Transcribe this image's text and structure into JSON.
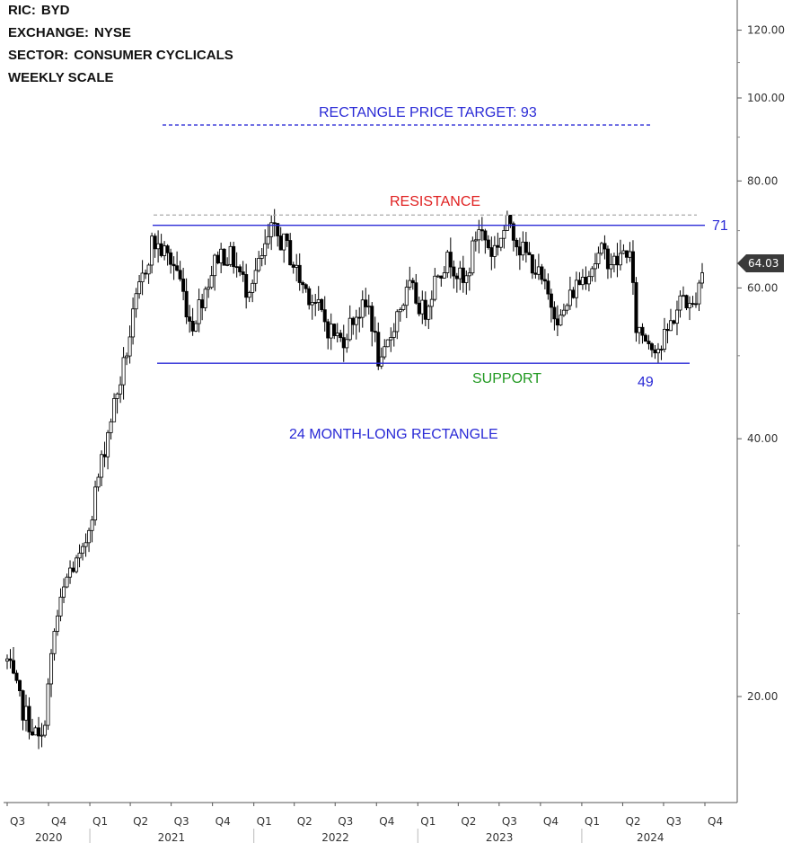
{
  "header": {
    "ric_label": "RIC:",
    "ric": "BYD",
    "exchange_label": "EXCHANGE:",
    "exchange": "NYSE",
    "sector_label": "SECTOR:",
    "sector": "CONSUMER CYCLICALS",
    "scale": "WEEKLY SCALE"
  },
  "annotations": {
    "price_target": "RECTANGLE PRICE TARGET: 93",
    "resistance": "RESISTANCE",
    "resistance_value": "71",
    "support": "SUPPORT",
    "support_value": "49",
    "pattern": "24 MONTH-LONG RECTANGLE",
    "last_price": "64.03"
  },
  "colors": {
    "candle": "#000000",
    "resistance_line": "#2a2ad6",
    "support_line": "#2a2ad6",
    "target_line": "#2a2ad6",
    "grey_dashed": "#aaaaaa",
    "resistance_text": "#e02020",
    "support_text": "#229922"
  },
  "chart_data": {
    "type": "candlestick",
    "scale": "log",
    "ylim": [
      16,
      130
    ],
    "y_ticks": [
      "20.00",
      "40.00",
      "60.00",
      "80.00",
      "100.00",
      "120.00"
    ],
    "x_quarter_labels": [
      "Q3",
      "Q4",
      "Q1",
      "Q2",
      "Q3",
      "Q4",
      "Q1",
      "Q2",
      "Q3",
      "Q4",
      "Q1",
      "Q2",
      "Q3",
      "Q4",
      "Q1",
      "Q2",
      "Q3",
      "Q4"
    ],
    "x_year_labels": [
      "2020",
      "2021",
      "2022",
      "2023",
      "2024"
    ],
    "levels": {
      "resistance": 71,
      "support": 49,
      "target": 93,
      "upper_dashed": 73,
      "last": 64.03
    },
    "series": [
      {
        "values": [
          {
            "x": "2020-07-01",
            "y": 22
          },
          {
            "x": "2020-08-01",
            "y": 19.5
          },
          {
            "x": "2020-09-15",
            "y": 17.5
          },
          {
            "x": "2020-10-15",
            "y": 24
          },
          {
            "x": "2020-11-15",
            "y": 28
          },
          {
            "x": "2020-12-15",
            "y": 29
          },
          {
            "x": "2021-01-15",
            "y": 35
          },
          {
            "x": "2021-02-15",
            "y": 42
          },
          {
            "x": "2021-03-15",
            "y": 48
          },
          {
            "x": "2021-04-15",
            "y": 58
          },
          {
            "x": "2021-05-20",
            "y": 68
          },
          {
            "x": "2021-06-15",
            "y": 66
          },
          {
            "x": "2021-07-15",
            "y": 63
          },
          {
            "x": "2021-08-15",
            "y": 54
          },
          {
            "x": "2021-09-15",
            "y": 60
          },
          {
            "x": "2021-10-15",
            "y": 66
          },
          {
            "x": "2021-11-15",
            "y": 65
          },
          {
            "x": "2021-12-15",
            "y": 60
          },
          {
            "x": "2022-01-15",
            "y": 64
          },
          {
            "x": "2022-02-10",
            "y": 70
          },
          {
            "x": "2022-03-15",
            "y": 67
          },
          {
            "x": "2022-04-15",
            "y": 61
          },
          {
            "x": "2022-05-15",
            "y": 58
          },
          {
            "x": "2022-06-15",
            "y": 54
          },
          {
            "x": "2022-07-15",
            "y": 52
          },
          {
            "x": "2022-08-15",
            "y": 56
          },
          {
            "x": "2022-09-15",
            "y": 57
          },
          {
            "x": "2022-10-10",
            "y": 48
          },
          {
            "x": "2022-11-15",
            "y": 56
          },
          {
            "x": "2022-12-15",
            "y": 60
          },
          {
            "x": "2023-01-15",
            "y": 56
          },
          {
            "x": "2023-02-15",
            "y": 63
          },
          {
            "x": "2023-03-15",
            "y": 65
          },
          {
            "x": "2023-04-15",
            "y": 60
          },
          {
            "x": "2023-05-15",
            "y": 71
          },
          {
            "x": "2023-06-15",
            "y": 66
          },
          {
            "x": "2023-07-25",
            "y": 72
          },
          {
            "x": "2023-08-15",
            "y": 67
          },
          {
            "x": "2023-09-15",
            "y": 64
          },
          {
            "x": "2023-10-15",
            "y": 59
          },
          {
            "x": "2023-11-15",
            "y": 55
          },
          {
            "x": "2023-12-15",
            "y": 60
          },
          {
            "x": "2024-01-15",
            "y": 63
          },
          {
            "x": "2024-02-15",
            "y": 66
          },
          {
            "x": "2024-03-15",
            "y": 64
          },
          {
            "x": "2024-04-15",
            "y": 67
          },
          {
            "x": "2024-05-01",
            "y": 54
          },
          {
            "x": "2024-06-01",
            "y": 52
          },
          {
            "x": "2024-06-25",
            "y": 51
          },
          {
            "x": "2024-07-20",
            "y": 55
          },
          {
            "x": "2024-08-15",
            "y": 59
          },
          {
            "x": "2024-09-01",
            "y": 56
          },
          {
            "x": "2024-09-20",
            "y": 62
          },
          {
            "x": "2024-10-01",
            "y": 64.03
          }
        ]
      }
    ]
  }
}
